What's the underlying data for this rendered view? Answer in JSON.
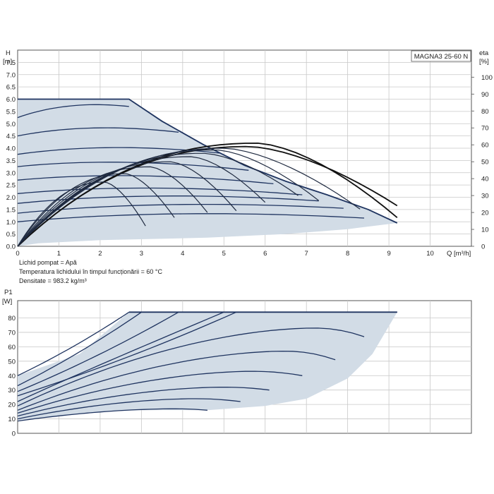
{
  "chart_data": [
    {
      "type": "line",
      "model_label": "MAGNA3 25-60 N",
      "ylabel": "H",
      "ylabel_unit": "[m]",
      "y2label": "eta",
      "y2label_unit": "[%]",
      "xlabel": "Q [m³/h]",
      "xlim": [
        0,
        11
      ],
      "ylim": [
        0,
        8
      ],
      "y2lim": [
        0,
        116
      ],
      "x_ticks": [
        "0",
        "1",
        "2",
        "3",
        "4",
        "5",
        "6",
        "7",
        "8",
        "9",
        "10"
      ],
      "y_ticks": [
        "0.0",
        "0.5",
        "1.0",
        "1.5",
        "2.0",
        "2.5",
        "3.0",
        "3.5",
        "4.0",
        "4.5",
        "5.0",
        "5.5",
        "6.0",
        "6.5",
        "7.0",
        "7.5"
      ],
      "y2_ticks": [
        "0",
        "10",
        "20",
        "30",
        "40",
        "50",
        "60",
        "70",
        "80",
        "90",
        "100"
      ],
      "grid": true,
      "operating_area": {
        "upper": [
          [
            0,
            6.0
          ],
          [
            2.7,
            6.0
          ],
          [
            3.5,
            5.1
          ],
          [
            4.5,
            4.15
          ],
          [
            5.5,
            3.3
          ],
          [
            6.5,
            2.65
          ],
          [
            7.5,
            2.1
          ],
          [
            8.5,
            1.5
          ],
          [
            9.2,
            0.95
          ]
        ],
        "lower": [
          [
            0,
            0
          ],
          [
            0.5,
            0.12
          ],
          [
            2,
            0.25
          ],
          [
            4.6,
            0.35
          ],
          [
            6.5,
            0.5
          ],
          [
            8,
            0.7
          ],
          [
            9.2,
            0.95
          ]
        ]
      },
      "head_curves": [
        {
          "h0": 6.0,
          "q0": 2.7,
          "q1": 9.2,
          "h1": 0.95,
          "flat": true
        },
        {
          "h0": 5.25,
          "q1": 2.7,
          "h1": 5.7
        },
        {
          "h0": 4.5,
          "q1": 3.9,
          "h1": 4.65
        },
        {
          "h0": 3.75,
          "q1": 4.9,
          "h1": 3.8
        },
        {
          "h0": 3.25,
          "q1": 5.6,
          "h1": 3.1
        },
        {
          "h0": 2.7,
          "q1": 6.2,
          "h1": 2.55
        },
        {
          "h0": 2.15,
          "q1": 6.9,
          "h1": 2.1
        },
        {
          "h0": 1.75,
          "q1": 7.3,
          "h1": 1.85
        },
        {
          "h0": 1.35,
          "q1": 7.9,
          "h1": 1.55
        },
        {
          "h0": 1.0,
          "q1": 8.4,
          "h1": 1.15
        }
      ],
      "eta_curves": [
        {
          "peak_q": 5.8,
          "peak": 61,
          "end_q": 9.2,
          "end_eta": 17
        },
        {
          "peak_q": 5.6,
          "peak": 59,
          "end_q": 9.2,
          "end_eta": 24
        },
        {
          "peak_q": 5.0,
          "peak": 58,
          "end_q": 8.3,
          "end_eta": 22
        },
        {
          "peak_q": 4.8,
          "peak": 57,
          "end_q": 7.3,
          "end_eta": 27
        },
        {
          "peak_q": 4.5,
          "peak": 55,
          "end_q": 6.8,
          "end_eta": 30
        },
        {
          "peak_q": 4.2,
          "peak": 53,
          "end_q": 6.0,
          "end_eta": 26
        },
        {
          "peak_q": 3.7,
          "peak": 50,
          "end_q": 5.3,
          "end_eta": 21
        },
        {
          "peak_q": 3.2,
          "peak": 47,
          "end_q": 4.6,
          "end_eta": 20
        },
        {
          "peak_q": 2.6,
          "peak": 43,
          "end_q": 3.8,
          "end_eta": 17
        },
        {
          "peak_q": 2.1,
          "peak": 38,
          "end_q": 3.1,
          "end_eta": 12
        }
      ],
      "info_lines": [
        "Lichid pompat = Apă",
        "Temperatura lichidului în timpul funcționării = 60 °C",
        "Densitate = 983.2 kg/m³"
      ]
    },
    {
      "type": "line",
      "ylabel": "P1",
      "ylabel_unit": "[W]",
      "xlim": [
        0,
        11
      ],
      "ylim": [
        0,
        92
      ],
      "y_ticks": [
        "0",
        "10",
        "20",
        "30",
        "40",
        "50",
        "60",
        "70",
        "80"
      ],
      "grid": true,
      "operating_area": {
        "upper": [
          [
            0,
            40
          ],
          [
            1.5,
            55
          ],
          [
            2.7,
            84
          ],
          [
            9.2,
            84
          ]
        ],
        "lower": [
          [
            0,
            9
          ],
          [
            1,
            12
          ],
          [
            2,
            15
          ],
          [
            3,
            16
          ],
          [
            4.6,
            16
          ],
          [
            6,
            19
          ],
          [
            7,
            24
          ],
          [
            8,
            38
          ],
          [
            8.6,
            55
          ],
          [
            9.2,
            84
          ]
        ]
      },
      "power_curves": [
        {
          "p0": 40,
          "q1": 2.7,
          "p1": 84
        },
        {
          "p0": 33,
          "q1": 3.0,
          "p1": 84
        },
        {
          "p0": 29,
          "q1": 3.9,
          "p1": 84
        },
        {
          "p0": 26,
          "q1": 5.3,
          "p1": 84
        },
        {
          "p0": 22,
          "q1": 9.2,
          "p1": 84,
          "flat_from": 3.0
        },
        {
          "p0": 19,
          "q1": 8.4,
          "p1": 67,
          "peak_q": 7.2,
          "peak": 73
        },
        {
          "p0": 16,
          "q1": 7.7,
          "p1": 51,
          "peak_q": 6.5,
          "peak": 57
        },
        {
          "p0": 14,
          "q1": 6.9,
          "p1": 40,
          "peak_q": 5.7,
          "peak": 43
        },
        {
          "p0": 12,
          "q1": 6.1,
          "p1": 30,
          "peak_q": 5.0,
          "peak": 32
        },
        {
          "p0": 10,
          "q1": 5.4,
          "p1": 22,
          "peak_q": 4.3,
          "peak": 24
        },
        {
          "p0": 8.5,
          "q1": 4.6,
          "p1": 16,
          "peak_q": 3.8,
          "peak": 17
        }
      ]
    }
  ]
}
